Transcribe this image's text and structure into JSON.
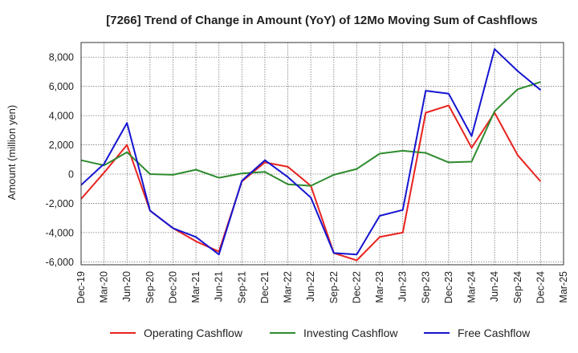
{
  "chart_data": {
    "type": "line",
    "title": "[7266]  Trend of Change in Amount (YoY) of 12Mo Moving Sum of Cashflows",
    "xlabel": "",
    "ylabel": "Amount (million yen)",
    "ylim": [
      -6200,
      9000
    ],
    "yticks": [
      -6000,
      -4000,
      -2000,
      0,
      2000,
      4000,
      6000,
      8000
    ],
    "ytick_labels": [
      "-6,000",
      "-4,000",
      "-2,000",
      "0",
      "2,000",
      "4,000",
      "6,000",
      "8,000"
    ],
    "grid": true,
    "legend_position": "bottom",
    "categories": [
      "Dec-19",
      "Mar-20",
      "Jun-20",
      "Sep-20",
      "Dec-20",
      "Mar-21",
      "Jun-21",
      "Sep-21",
      "Dec-21",
      "Mar-22",
      "Jun-22",
      "Sep-22",
      "Dec-22",
      "Mar-23",
      "Jun-23",
      "Sep-23",
      "Dec-23",
      "Mar-24",
      "Jun-24",
      "Sep-24",
      "Dec-24",
      "Mar-25"
    ],
    "series": [
      {
        "name": "Operating Cashflow",
        "color": "#e8231f",
        "values": [
          -1700,
          100,
          2000,
          -2500,
          -3700,
          -4600,
          -5300,
          -500,
          800,
          500,
          -800,
          -5400,
          -5900,
          -4300,
          -4000,
          4200,
          4700,
          1800,
          4200,
          1300,
          -500,
          null
        ]
      },
      {
        "name": "Investing Cashflow",
        "color": "#2e8b2e",
        "values": [
          950,
          600,
          1500,
          0,
          -50,
          300,
          -250,
          50,
          150,
          -700,
          -800,
          -50,
          350,
          1400,
          1600,
          1450,
          800,
          850,
          4300,
          5800,
          6300,
          null
        ]
      },
      {
        "name": "Free Cashflow",
        "color": "#1515d0",
        "values": [
          -750,
          700,
          3500,
          -2500,
          -3700,
          -4300,
          -5500,
          -450,
          950,
          -200,
          -1600,
          -5400,
          -5500,
          -2850,
          -2450,
          5700,
          5500,
          2600,
          8550,
          7050,
          5750,
          null
        ]
      }
    ]
  }
}
